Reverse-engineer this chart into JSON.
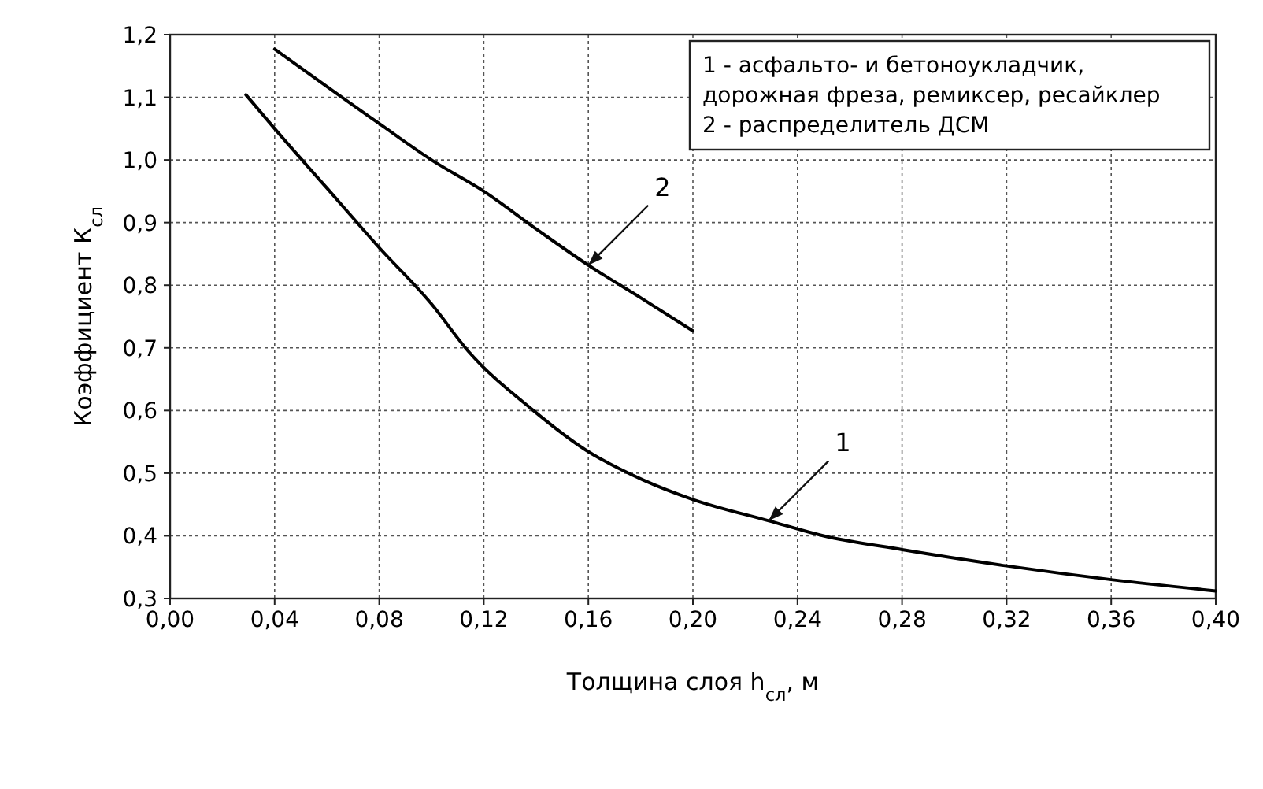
{
  "chart_data": {
    "type": "line",
    "xlabel": "Толщина слоя h$_{сл}$, м",
    "ylabel": "Коэффициент К$_{сл}$",
    "xlim": [
      0,
      0.4
    ],
    "xticks": [
      {
        "value": 0,
        "label": "0,00"
      },
      {
        "value": 0.04,
        "label": "0,04"
      },
      {
        "value": 0.08,
        "label": "0,08"
      },
      {
        "value": 0.12,
        "label": "0,12"
      },
      {
        "value": 0.16,
        "label": "0,16"
      },
      {
        "value": 0.2,
        "label": "0,20"
      },
      {
        "value": 0.24,
        "label": "0,24"
      },
      {
        "value": 0.28,
        "label": "0,28"
      },
      {
        "value": 0.32,
        "label": "0,32"
      },
      {
        "value": 0.36,
        "label": "0,36"
      },
      {
        "value": 0.4,
        "label": "0,40"
      }
    ],
    "ylim": [
      0.3,
      1.2
    ],
    "yticks": [
      {
        "value": 0.3,
        "label": "0,3"
      },
      {
        "value": 0.4,
        "label": "0,4"
      },
      {
        "value": 0.5,
        "label": "0,5"
      },
      {
        "value": 0.6,
        "label": "0,6"
      },
      {
        "value": 0.7,
        "label": "0,7"
      },
      {
        "value": 0.8,
        "label": "0,8"
      },
      {
        "value": 0.9,
        "label": "0,9"
      },
      {
        "value": 1.0,
        "label": "1,0"
      },
      {
        "value": 1.1,
        "label": "1,1"
      },
      {
        "value": 1.2,
        "label": "1,2"
      }
    ],
    "grid": true,
    "series": [
      {
        "color": "#000000",
        "x": [
          0.029,
          0.04,
          0.06,
          0.08,
          0.1,
          0.114,
          0.139,
          0.159,
          0.181,
          0.2,
          0.229,
          0.25,
          0.28,
          0.32,
          0.36,
          0.4
        ],
        "values": [
          1.104,
          1.05,
          0.955,
          0.86,
          0.77,
          0.695,
          0.6,
          0.537,
          0.489,
          0.458,
          0.424,
          0.4,
          0.378,
          0.352,
          0.33,
          0.312
        ]
      },
      {
        "color": "#000000",
        "x": [
          0.04,
          0.08,
          0.1,
          0.12,
          0.14,
          0.16,
          0.18,
          0.2
        ],
        "values": [
          1.177,
          1.058,
          1.0,
          0.95,
          0.89,
          0.832,
          0.78,
          0.727
        ]
      }
    ],
    "annotations": [
      "1 - асфальто- и бетоноукладчик,",
      "дорожная фреза, ремиксер, ресайклер",
      "2 - распределитель ДСМ",
      {
        "text": "1",
        "x": 0.229,
        "y": 0.424
      },
      {
        "text": "2",
        "x": 0.16,
        "y": 0.832
      }
    ]
  }
}
